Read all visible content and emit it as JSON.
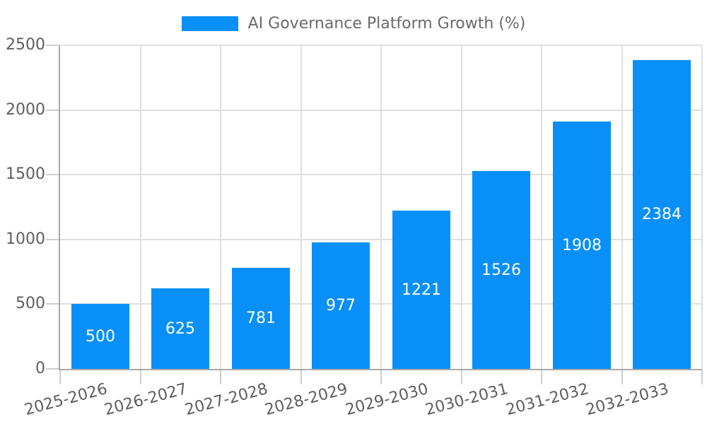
{
  "chart_data": {
    "type": "bar",
    "title": "AI Governance Platform Growth (%)",
    "categories": [
      "2025-2026",
      "2026-2027",
      "2027-2028",
      "2028-2029",
      "2029-2030",
      "2030-2031",
      "2031-2032",
      "2032-2033"
    ],
    "values": [
      500,
      625,
      781,
      977,
      1221,
      1526,
      1908,
      2384
    ],
    "xlabel": "",
    "ylabel": "",
    "ylim": [
      0,
      2500
    ],
    "yticks": [
      0,
      500,
      1000,
      1500,
      2000,
      2500
    ],
    "grid": "both",
    "legend_position": "top-center",
    "bar_label_position": "inside-center",
    "xtick_label_rotation_deg": -15
  },
  "legend": {
    "swatch_icon": "legend-color-swatch",
    "label": "AI Governance Platform Growth (%)"
  },
  "colors": {
    "bar": "#0990f8",
    "bar_label": "#ffffff",
    "axis_text": "#5e5e5e",
    "legend_text": "#6a6a6a",
    "grid_line": "#dfdfdf",
    "axis_line": "#a8a8a8",
    "tick_line": "#cdcdcd",
    "background": "#ffffff"
  }
}
